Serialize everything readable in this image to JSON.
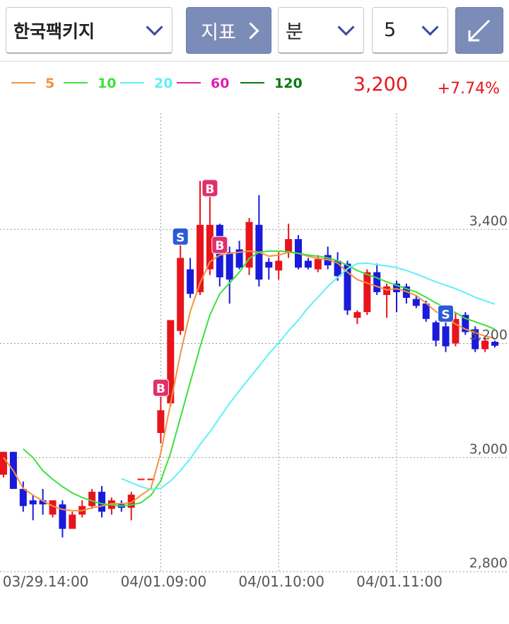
{
  "header": {
    "stock": "한국팩키지",
    "indicator": "지표",
    "period_unit": "분",
    "period": "5",
    "price": "3,200",
    "change": "+7.74%"
  },
  "chart_data": {
    "type": "candlestick",
    "categories": [
      null,
      null,
      null,
      null,
      "03/29.14:00",
      null,
      null,
      null,
      null,
      null,
      null,
      null,
      null,
      null,
      null,
      null,
      "04/01.09:00",
      null,
      null,
      null,
      null,
      null,
      null,
      null,
      null,
      null,
      null,
      null,
      "04/01.10:00",
      null,
      null,
      null,
      null,
      null,
      null,
      null,
      null,
      null,
      null,
      null,
      "04/01.11:00",
      null,
      null,
      null,
      null,
      null,
      null,
      null,
      null,
      null,
      null
    ],
    "open": [
      2970,
      3010,
      2945,
      2925,
      2925,
      2900,
      2918,
      2875,
      2900,
      2915,
      2940,
      2910,
      2918,
      2912,
      2963,
      2963,
      3043,
      3095,
      3222,
      3330,
      3290,
      3330,
      3408,
      3360,
      3365,
      3333,
      3408,
      3343,
      3328,
      3360,
      3383,
      3345,
      3330,
      3355,
      3345,
      3340,
      3245,
      3255,
      3325,
      3285,
      3305,
      3300,
      3278,
      3270,
      3237,
      3230,
      3200,
      3250,
      3225,
      3190,
      3203
    ],
    "high": [
      3010,
      3010,
      2958,
      2935,
      2945,
      2925,
      2925,
      2905,
      2925,
      2945,
      2950,
      2930,
      2925,
      2940,
      2963,
      2963,
      3110,
      3241,
      3375,
      3350,
      3485,
      3460,
      3410,
      3370,
      3380,
      3420,
      3460,
      3350,
      3360,
      3410,
      3390,
      3350,
      3355,
      3370,
      3360,
      3345,
      3258,
      3330,
      3340,
      3305,
      3310,
      3305,
      3285,
      3275,
      3240,
      3240,
      3255,
      3255,
      3230,
      3210,
      3205
    ],
    "low": [
      2965,
      2945,
      2905,
      2890,
      2900,
      2895,
      2860,
      2875,
      2895,
      2910,
      2895,
      2900,
      2905,
      2890,
      2963,
      2963,
      3025,
      3090,
      3215,
      3280,
      3285,
      3320,
      3300,
      3270,
      3330,
      3320,
      3300,
      3312,
      3312,
      3350,
      3330,
      3330,
      3325,
      3330,
      3310,
      3250,
      3234,
      3250,
      3285,
      3245,
      3255,
      3270,
      3262,
      3238,
      3195,
      3185,
      3195,
      3215,
      3185,
      3185,
      3193
    ],
    "close": [
      3010,
      2945,
      2915,
      2918,
      2918,
      2925,
      2875,
      2900,
      2915,
      2940,
      2905,
      2925,
      2912,
      2935,
      2963,
      2963,
      3083,
      3241,
      3350,
      3287,
      3408,
      3408,
      3316,
      3312,
      3333,
      3413,
      3312,
      3333,
      3345,
      3383,
      3333,
      3333,
      3348,
      3337,
      3318,
      3258,
      3255,
      3325,
      3290,
      3300,
      3290,
      3280,
      3266,
      3243,
      3205,
      3195,
      3243,
      3220,
      3190,
      3205,
      3196
    ],
    "up_color": "#e8141c",
    "down_color": "#1a1adb",
    "moving_averages": [
      {
        "name": "5",
        "color": "#f5923e",
        "values": [
          3000,
          2977,
          2946,
          2934,
          2924,
          2915,
          2909,
          2907,
          2907,
          2912,
          2915,
          2919,
          2919,
          2921,
          2934,
          2946,
          3008,
          3095,
          3182,
          3256,
          3306,
          3343,
          3355,
          3358,
          3360,
          3362,
          3360,
          3353,
          3355,
          3360,
          3358,
          3353,
          3349,
          3347,
          3341,
          3325,
          3312,
          3306,
          3300,
          3294,
          3296,
          3291,
          3284,
          3271,
          3256,
          3244,
          3234,
          3225,
          3219,
          3213,
          3209
        ]
      },
      {
        "name": "10",
        "color": "#3ee03e",
        "values": [
          null,
          null,
          3015,
          3000,
          2977,
          2962,
          2949,
          2938,
          2930,
          2924,
          2919,
          2917,
          2915,
          2917,
          2921,
          2934,
          2959,
          3008,
          3070,
          3132,
          3194,
          3250,
          3287,
          3306,
          3325,
          3349,
          3360,
          3362,
          3362,
          3361,
          3358,
          3355,
          3353,
          3350,
          3345,
          3337,
          3328,
          3321,
          3315,
          3308,
          3302,
          3296,
          3290,
          3281,
          3271,
          3263,
          3254,
          3244,
          3238,
          3232,
          3225
        ]
      },
      {
        "name": "20",
        "color": "#5ff0f5",
        "values": [
          null,
          null,
          null,
          null,
          null,
          null,
          null,
          null,
          null,
          null,
          null,
          null,
          2963,
          2956,
          2949,
          2944,
          2946,
          2959,
          2977,
          2998,
          3023,
          3045,
          3070,
          3095,
          3117,
          3139,
          3160,
          3182,
          3201,
          3222,
          3241,
          3263,
          3281,
          3300,
          3316,
          3331,
          3340,
          3341,
          3338,
          3336,
          3333,
          3328,
          3322,
          3315,
          3308,
          3302,
          3296,
          3289,
          3281,
          3275,
          3269
        ]
      },
      {
        "name": "60",
        "color": "#e020b0"
      },
      {
        "name": "120",
        "color": "#0a7a0a"
      }
    ],
    "signals": [
      {
        "index": 16,
        "label": "B"
      },
      {
        "index": 18,
        "label": "S"
      },
      {
        "index": 21,
        "label": "B"
      },
      {
        "index": 22,
        "label": "B"
      },
      {
        "index": 45,
        "label": "S"
      }
    ],
    "signal_colors": {
      "B": "#e0306a",
      "S": "#2a5bd8"
    },
    "ylim": [
      2800,
      3600
    ],
    "yticks": [
      {
        "value": 2800,
        "label": "2,800"
      },
      {
        "value": 3000,
        "label": "3,000"
      },
      {
        "value": 3200,
        "label": "3,200"
      },
      {
        "value": 3400,
        "label": "3,400"
      }
    ],
    "grid": true
  }
}
